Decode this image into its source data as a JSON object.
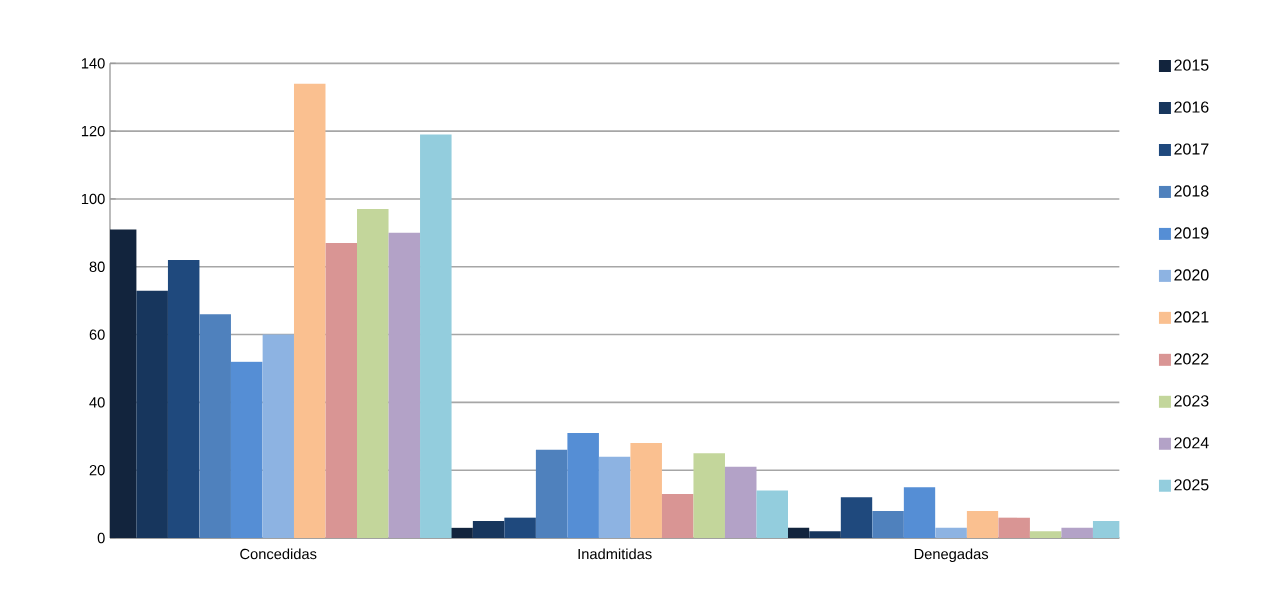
{
  "chart_data": {
    "type": "bar",
    "categories": [
      "Concedidas",
      "Inadmitidas",
      "Denegadas"
    ],
    "series": [
      {
        "name": "2015",
        "color": "#12243d",
        "values": [
          91,
          3,
          3
        ]
      },
      {
        "name": "2016",
        "color": "#17365d",
        "values": [
          73,
          5,
          2
        ]
      },
      {
        "name": "2017",
        "color": "#1f497d",
        "values": [
          82,
          6,
          12
        ]
      },
      {
        "name": "2018",
        "color": "#4f81bd",
        "values": [
          66,
          26,
          8
        ]
      },
      {
        "name": "2019",
        "color": "#558ed5",
        "values": [
          52,
          31,
          15
        ]
      },
      {
        "name": "2020",
        "color": "#8db3e2",
        "values": [
          60,
          24,
          3
        ]
      },
      {
        "name": "2021",
        "color": "#fac090",
        "values": [
          134,
          28,
          8
        ]
      },
      {
        "name": "2022",
        "color": "#d99594",
        "values": [
          87,
          13,
          6
        ]
      },
      {
        "name": "2023",
        "color": "#c3d69b",
        "values": [
          97,
          25,
          2
        ]
      },
      {
        "name": "2024",
        "color": "#b3a2c7",
        "values": [
          90,
          21,
          3
        ]
      },
      {
        "name": "2025",
        "color": "#93cddd",
        "values": [
          119,
          14,
          5
        ]
      }
    ],
    "ylim": [
      0,
      140
    ],
    "yticks": [
      0,
      20,
      40,
      60,
      80,
      100,
      120,
      140
    ],
    "grid": "y",
    "legend": "right"
  }
}
